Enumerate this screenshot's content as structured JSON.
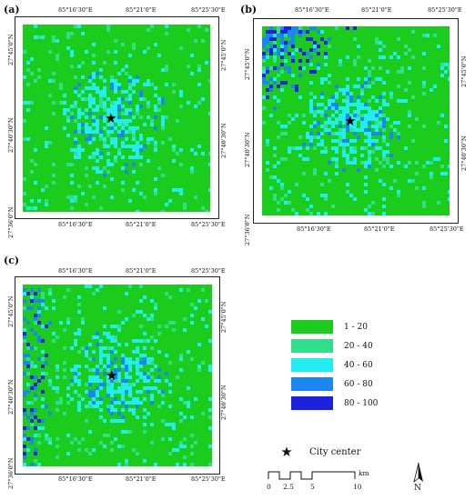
{
  "panels": [
    {
      "label": "(a)",
      "top_ticks": [
        "85°16'30\"E",
        "85°21'0\"E",
        "85°25'30\"E"
      ],
      "bottom_ticks": [
        "85°16'30\"E",
        "85°21'0\"E",
        "85°25'30\"E"
      ],
      "left_ticks": [
        "27°45'0\"N",
        "27°40'30\"N",
        "27°36'0\"N"
      ],
      "right_ticks": [
        "27°45'0\"N",
        "27°40'30\"N"
      ],
      "high_class_share": 0.18
    },
    {
      "label": "(b)",
      "top_ticks": [
        "85°16'30\"E",
        "85°21'0\"E",
        "85°25'30\"E"
      ],
      "bottom_ticks": [
        "85°16'30\"E",
        "85°21'0\"E",
        "85°25'30\"E"
      ],
      "left_ticks": [
        "27°45'0\"N",
        "27°40'30\"N",
        "27°36'0\"N"
      ],
      "right_ticks": [
        "27°45'0\"N",
        "27°40'30\"N"
      ],
      "high_class_share": 0.22
    },
    {
      "label": "(c)",
      "top_ticks": [
        "85°16'30\"E",
        "85°21'0\"E",
        "85°25'30\"E"
      ],
      "bottom_ticks": [
        "85°16'30\"E",
        "85°21'0\"E",
        "85°25'30\"E"
      ],
      "left_ticks": [
        "27°45'0\"N",
        "27°40'30\"N",
        "27°36'0\"N"
      ],
      "right_ticks": [
        "27°45'0\"N",
        "27°40'30\"N"
      ],
      "high_class_share": 0.2
    }
  ],
  "legend": [
    {
      "label": "1 - 20",
      "color": "#1ccc1c"
    },
    {
      "label": "20 - 40",
      "color": "#2ee08a"
    },
    {
      "label": "40 - 60",
      "color": "#22eef2"
    },
    {
      "label": "60 - 80",
      "color": "#1a86f0"
    },
    {
      "label": "80 - 100",
      "color": "#1a22dd"
    }
  ],
  "city_center": {
    "label": "City center",
    "icon": "star-icon"
  },
  "scale_bar": {
    "ticks": [
      "0",
      "2.5",
      "5",
      "10"
    ],
    "unit": "km"
  },
  "north_arrow": {
    "label": "N",
    "icon": "north-arrow-icon"
  }
}
